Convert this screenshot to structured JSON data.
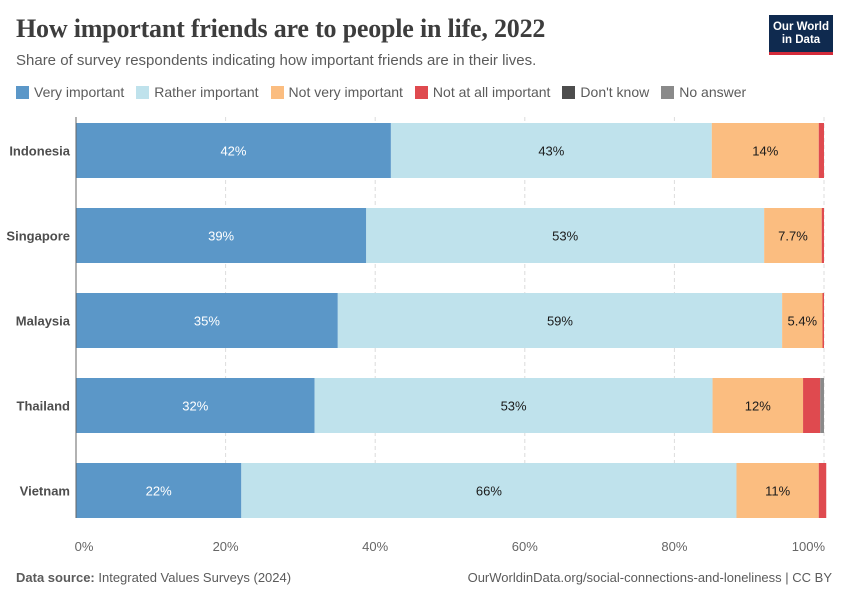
{
  "title": "How important friends are to people in life, 2022",
  "subtitle": "Share of survey respondents indicating how important friends are in their lives.",
  "logo": {
    "line1": "Our World",
    "line2": "in Data"
  },
  "footer": {
    "source_label": "Data source:",
    "source_text": "Integrated Values Surveys (2024)",
    "url": "OurWorldinData.org/social-connections-and-loneliness | CC BY"
  },
  "colors": {
    "very_important": "#5b97c8",
    "rather_important": "#bfe2ec",
    "not_very_important": "#fbbd80",
    "not_at_all_important": "#df4a4f",
    "dont_know": "#4d4d4d",
    "no_answer": "#8a8a8a"
  },
  "chart_data": {
    "type": "bar",
    "orientation": "horizontal",
    "stacked": true,
    "categories": [
      "Indonesia",
      "Singapore",
      "Malaysia",
      "Thailand",
      "Vietnam"
    ],
    "series": [
      {
        "name": "Very important",
        "color": "#5b97c8",
        "values": [
          42.1,
          38.8,
          35.0,
          31.9,
          22.1
        ],
        "labels": [
          "42%",
          "39%",
          "35%",
          "32%",
          "22%"
        ]
      },
      {
        "name": "Rather important",
        "color": "#bfe2ec",
        "values": [
          42.9,
          53.2,
          59.4,
          53.2,
          66.2
        ],
        "labels": [
          "43%",
          "53%",
          "59%",
          "53%",
          "66%"
        ]
      },
      {
        "name": "Not very important",
        "color": "#fbbd80",
        "values": [
          14.3,
          7.7,
          5.4,
          12.1,
          11.0
        ],
        "labels": [
          "14%",
          "7.7%",
          "5.4%",
          "12%",
          "11%"
        ]
      },
      {
        "name": "Not at all important",
        "color": "#df4a4f",
        "values": [
          0.7,
          0.3,
          0.2,
          2.3,
          1.0
        ],
        "labels": [
          "",
          "",
          "",
          "",
          ""
        ]
      },
      {
        "name": "Don't know",
        "color": "#4d4d4d",
        "values": [
          0,
          0,
          0,
          0,
          0
        ],
        "labels": [
          "",
          "",
          "",
          "",
          ""
        ]
      },
      {
        "name": "No answer",
        "color": "#8a8a8a",
        "values": [
          0,
          0,
          0,
          0.5,
          0
        ],
        "labels": [
          "",
          "",
          "",
          "",
          ""
        ]
      }
    ],
    "xlim": [
      0,
      100
    ],
    "xticks": [
      "0%",
      "20%",
      "40%",
      "60%",
      "80%",
      "100%"
    ],
    "xtick_values": [
      0,
      20,
      40,
      60,
      80,
      100
    ],
    "grid": true,
    "legend_position": "top"
  }
}
